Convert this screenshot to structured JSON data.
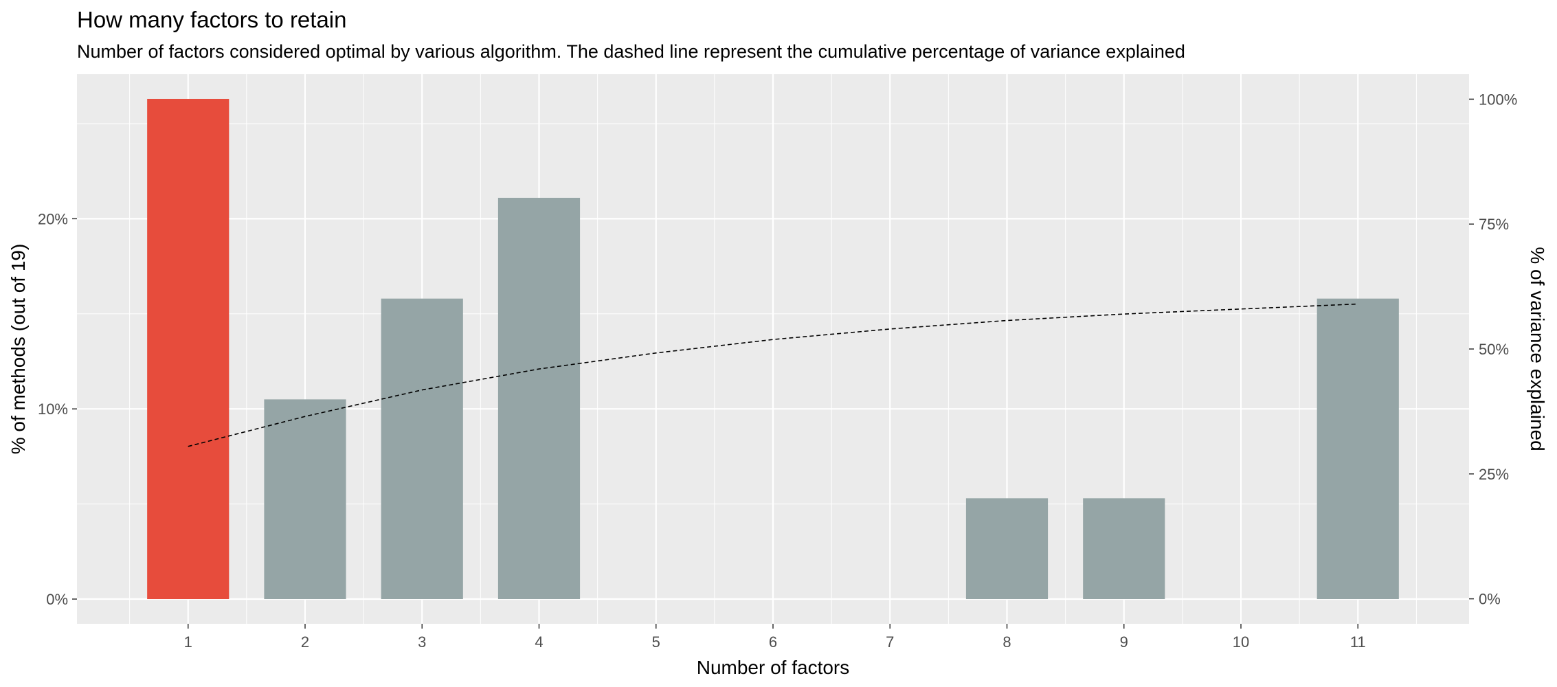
{
  "chart_data": {
    "type": "bar",
    "title": "How many factors to retain",
    "subtitle": "Number of factors considered optimal by various algorithm. The dashed line represent the cumulative percentage of variance explained",
    "xlabel": "Number of factors",
    "ylabel": "% of methods (out of 19)",
    "y2label": "% of variance explained",
    "categories": [
      "1",
      "2",
      "3",
      "4",
      "5",
      "6",
      "7",
      "8",
      "9",
      "10",
      "11"
    ],
    "values": [
      26.3,
      10.5,
      15.8,
      21.1,
      0,
      0,
      0,
      5.3,
      5.3,
      0,
      15.8
    ],
    "highlight_index": 0,
    "ylim": [
      -1.3,
      27.6
    ],
    "yticks": [
      0,
      10,
      20
    ],
    "ytick_labels": [
      "0%",
      "10%",
      "20%"
    ],
    "y2lim": [
      -5,
      105
    ],
    "y2ticks": [
      0,
      25,
      50,
      75,
      100
    ],
    "y2tick_labels": [
      "0%",
      "25%",
      "50%",
      "75%",
      "100%"
    ],
    "line_series": {
      "x": [
        1,
        2,
        3,
        4,
        5,
        6,
        7,
        8,
        9,
        10,
        11
      ],
      "values": [
        30.5,
        36.5,
        41.8,
        46.0,
        49.2,
        51.9,
        54.0,
        55.7,
        57.0,
        58.0,
        59.0
      ]
    },
    "colors": {
      "highlight": "#E74C3C",
      "bar": "#95A5A6",
      "panel": "#EBEBEB",
      "grid": "#FFFFFF",
      "line": "#000000"
    },
    "grid": true
  }
}
